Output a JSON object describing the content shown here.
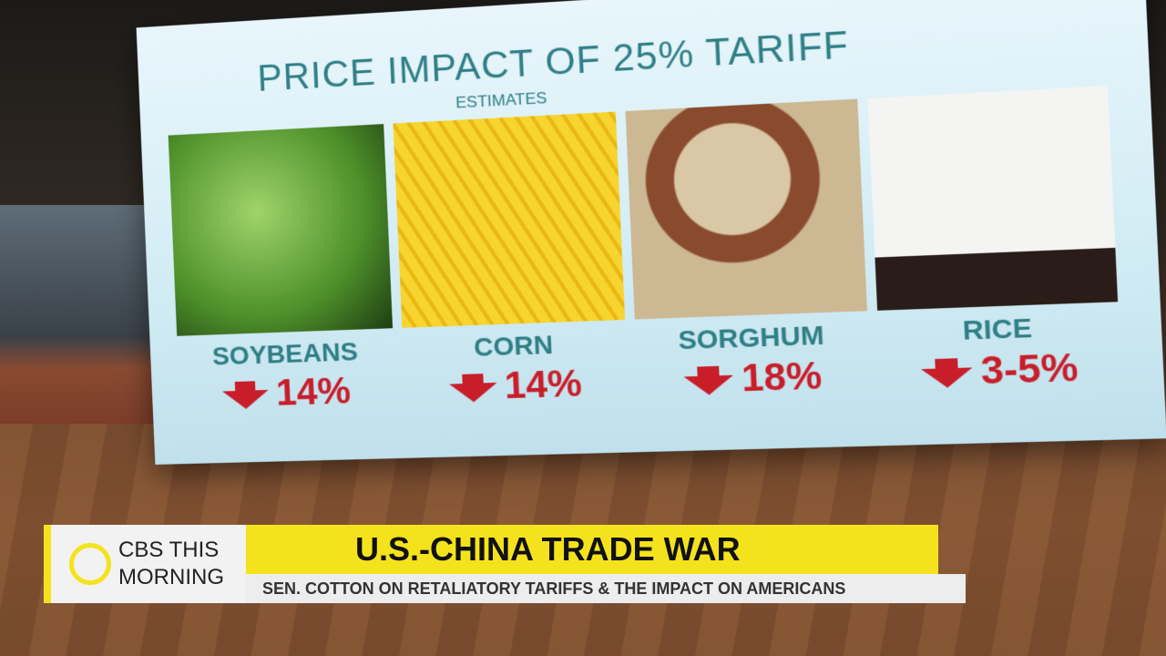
{
  "graphic": {
    "title": "PRICE IMPACT OF 25% TARIFF",
    "subtitle": "ESTIMATES",
    "items": [
      {
        "label": "SOYBEANS",
        "change": "14%"
      },
      {
        "label": "CORN",
        "change": "14%"
      },
      {
        "label": "SORGHUM",
        "change": "18%"
      },
      {
        "label": "RICE",
        "change": "3-5%"
      }
    ]
  },
  "lower_third": {
    "logo_line1": "CBS THIS",
    "logo_line2": "MORNING",
    "headline": "U.S.-CHINA TRADE WAR",
    "subheadline": "SEN. COTTON ON RETALIATORY TARIFFS & THE IMPACT ON AMERICANS"
  }
}
